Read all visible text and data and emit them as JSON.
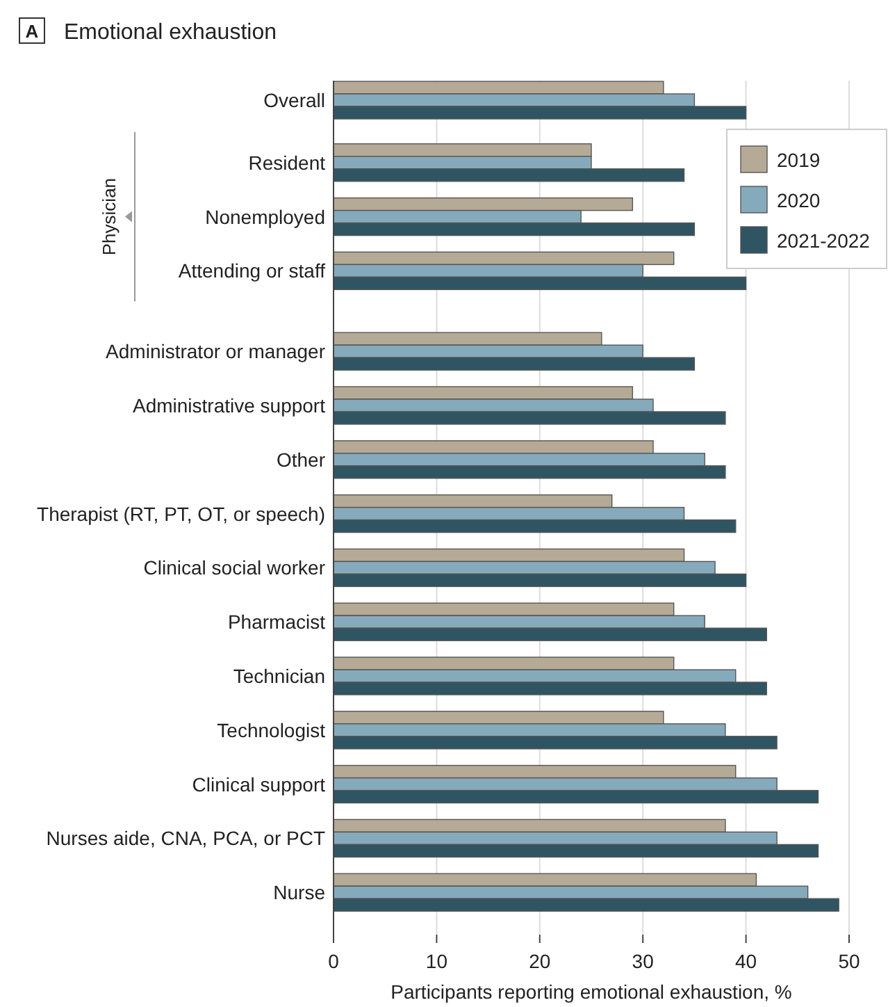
{
  "chart_data": {
    "type": "bar",
    "orientation": "horizontal",
    "title": "Emotional exhaustion",
    "xlabel": "Participants reporting emotional exhaustion, %",
    "annotations": [
      "A",
      "Physician"
    ],
    "categories": [
      "Overall",
      "Resident",
      "Nonemployed",
      "Attending or staff",
      "Administrator or manager",
      "Administrative support",
      "Other",
      "Therapist (RT, PT, OT, or speech)",
      "Clinical social worker",
      "Pharmacist",
      "Technician",
      "Technologist",
      "Clinical support",
      "Nurses aide, CNA, PCA, or PCT",
      "Nurse"
    ],
    "series": [
      {
        "name": "2019",
        "color": "#b5aa96",
        "values": [
          32,
          25,
          29,
          33,
          26,
          29,
          31,
          27,
          34,
          33,
          33,
          32,
          39,
          38,
          41
        ]
      },
      {
        "name": "2020",
        "color": "#85aabb",
        "values": [
          35,
          25,
          24,
          30,
          30,
          31,
          36,
          34,
          37,
          36,
          39,
          38,
          43,
          43,
          46
        ]
      },
      {
        "name": "2021-2022",
        "color": "#2f5562",
        "values": [
          40,
          34,
          35,
          40,
          35,
          38,
          38,
          39,
          40,
          42,
          42,
          43,
          47,
          47,
          49
        ]
      }
    ],
    "xlim": [
      0,
      50
    ],
    "xticks": [
      0,
      10,
      20,
      30,
      40,
      50
    ],
    "grid": "x",
    "legend": "top right"
  }
}
